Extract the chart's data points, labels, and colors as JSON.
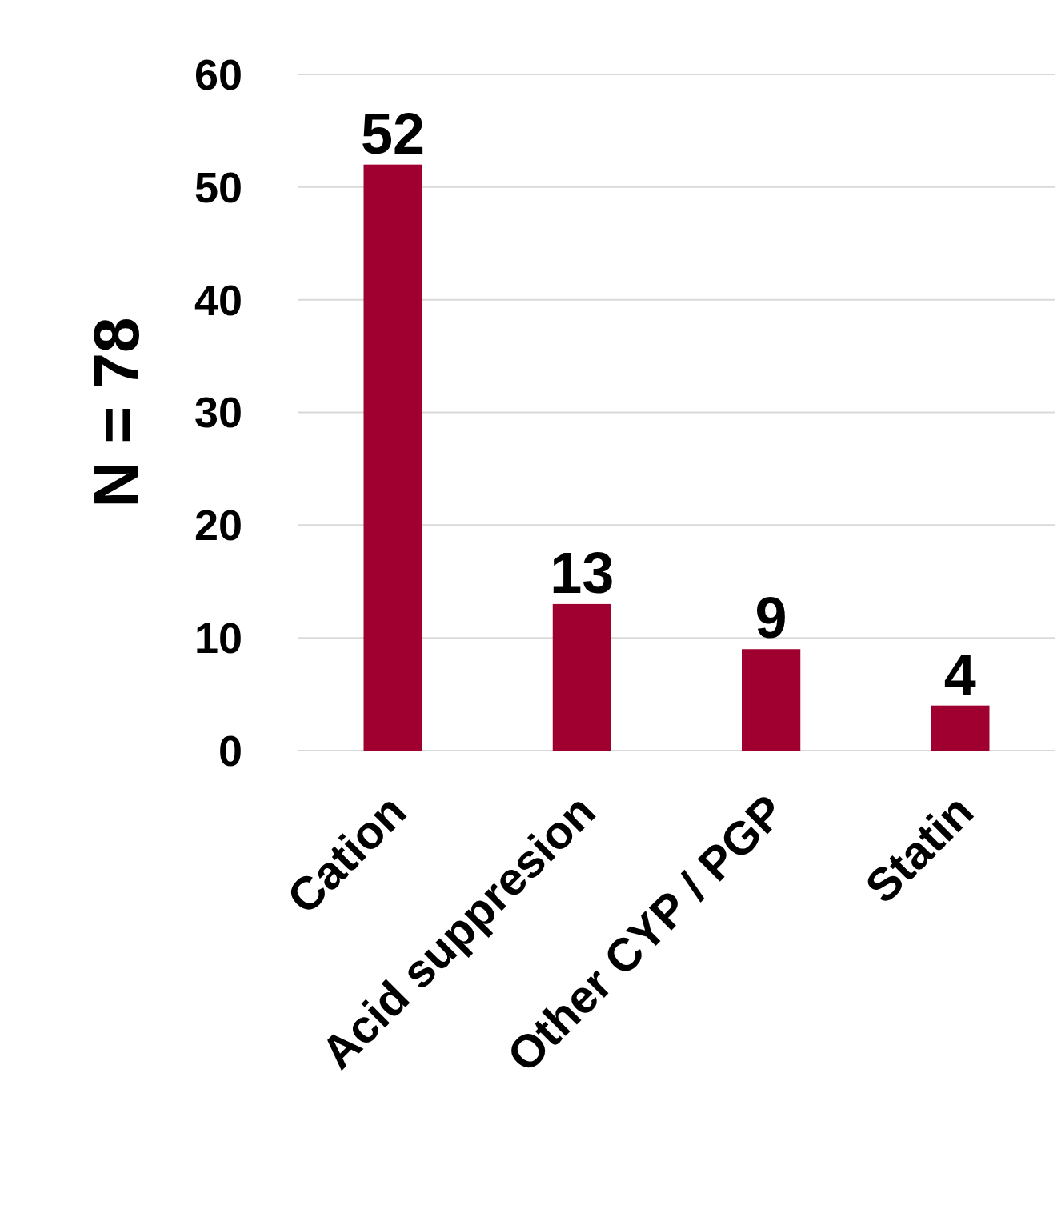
{
  "chart_data": {
    "type": "bar",
    "ylabel": "N = 78",
    "categories": [
      "Cation",
      "Acid suppresion",
      "Other CYP / PGP",
      "Statin"
    ],
    "values": [
      52,
      13,
      9,
      4
    ],
    "color": "#a00030",
    "ylim": [
      0,
      60
    ],
    "yticks": [
      0,
      10,
      20,
      30,
      40,
      50,
      60
    ],
    "grid": "y",
    "data_labels": true
  }
}
